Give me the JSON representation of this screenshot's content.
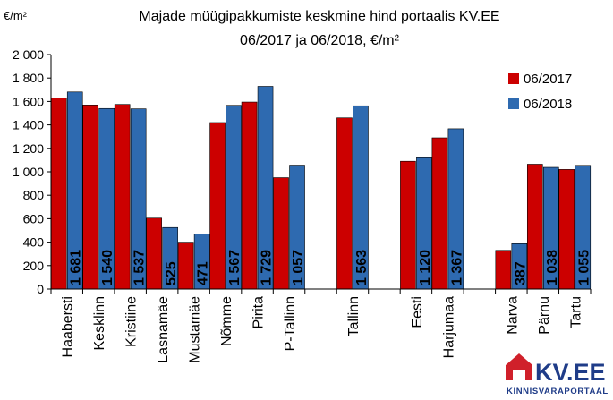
{
  "chart_data": {
    "type": "bar",
    "title": "Majade müügipakkumiste keskmine hind portaalis KV.EE",
    "subtitle": "06/2017 ja 06/2018, €/m²",
    "ylabel": "€/m²",
    "ylim": [
      0,
      2000
    ],
    "yticks": [
      0,
      200,
      400,
      600,
      800,
      1000,
      1200,
      1400,
      1600,
      1800,
      2000
    ],
    "ytick_labels": [
      "0",
      "200",
      "400",
      "600",
      "800",
      "1 000",
      "1 200",
      "1 400",
      "1 600",
      "1 800",
      "2 000"
    ],
    "grid": false,
    "legend_position": "top-right",
    "slots": [
      "Haabersti",
      "Kesklinn",
      "Kristiine",
      "Lasnamäe",
      "Mustamäe",
      "Nõmme",
      "Pirita",
      "P-Tallinn",
      "",
      "Tallinn",
      "",
      "Eesti",
      "Harjumaa",
      "",
      "Narva",
      "Pärnu",
      "Tartu"
    ],
    "categories": [
      "Haabersti",
      "Kesklinn",
      "Kristiine",
      "Lasnamäe",
      "Mustamäe",
      "Nõmme",
      "Pirita",
      "P-Tallinn",
      "Tallinn",
      "Eesti",
      "Harjumaa",
      "Narva",
      "Pärnu",
      "Tartu"
    ],
    "series": [
      {
        "name": "06/2017",
        "color": "#cc0000",
        "values": [
          1630,
          1570,
          1575,
          605,
          400,
          1420,
          1595,
          950,
          1460,
          1090,
          1290,
          330,
          1065,
          1020
        ]
      },
      {
        "name": "06/2018",
        "color": "#2e6ab0",
        "values": [
          1681,
          1540,
          1537,
          525,
          471,
          1567,
          1729,
          1057,
          1563,
          1120,
          1367,
          387,
          1038,
          1055
        ],
        "data_labels": [
          "1 681",
          "1 540",
          "1 537",
          "525",
          "471",
          "1 567",
          "1 729",
          "1 057",
          "1 563",
          "1 120",
          "1 367",
          "387",
          "1 038",
          "1 055"
        ]
      }
    ]
  },
  "logo": {
    "brand": "KV.EE",
    "tagline": "KINNISVARAPORTAAL",
    "house_color": "#d0202a",
    "text_color": "#1f3c88"
  }
}
